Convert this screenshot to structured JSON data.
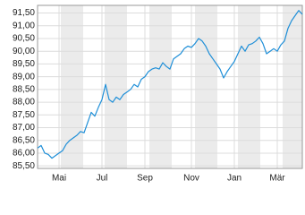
{
  "chart_data": {
    "type": "line",
    "color": "#1f8fd8",
    "grid": true,
    "categories": [
      null,
      null,
      null,
      null,
      null,
      null,
      "Mai",
      null,
      null,
      null,
      null,
      null,
      null,
      null,
      null,
      null,
      null,
      null,
      "Jul",
      null,
      null,
      null,
      null,
      null,
      null,
      null,
      null,
      null,
      null,
      null,
      "Sep",
      null,
      null,
      null,
      null,
      null,
      null,
      null,
      null,
      null,
      null,
      null,
      null,
      "Nov",
      null,
      null,
      null,
      null,
      null,
      null,
      null,
      null,
      null,
      null,
      null,
      "Jan",
      null,
      null,
      null,
      null,
      null,
      null,
      null,
      null,
      null,
      null,
      null,
      "Mär",
      null,
      null,
      null,
      null,
      null,
      null,
      null
    ],
    "values": [
      86.2,
      86.3,
      86.0,
      85.95,
      85.8,
      85.9,
      86.0,
      86.1,
      86.35,
      86.5,
      86.6,
      86.7,
      86.85,
      86.8,
      87.2,
      87.6,
      87.45,
      87.8,
      88.1,
      88.7,
      88.1,
      88.0,
      88.2,
      88.1,
      88.3,
      88.4,
      88.5,
      88.7,
      88.6,
      88.9,
      89.0,
      89.2,
      89.3,
      89.35,
      89.3,
      89.55,
      89.4,
      89.3,
      89.7,
      89.8,
      89.9,
      90.1,
      90.2,
      90.15,
      90.3,
      90.5,
      90.4,
      90.2,
      89.9,
      89.7,
      89.5,
      89.3,
      88.95,
      89.2,
      89.4,
      89.6,
      89.9,
      90.2,
      90.0,
      90.25,
      90.3,
      90.4,
      90.55,
      90.3,
      89.9,
      90.0,
      90.1,
      90.0,
      90.25,
      90.4,
      90.9,
      91.2,
      91.4,
      91.6,
      91.45
    ],
    "ylim": [
      85.4,
      91.8
    ],
    "yticks": [
      {
        "value": 85.5,
        "label": "85,50"
      },
      {
        "value": 86,
        "label": "86,00"
      },
      {
        "value": 86.5,
        "label": "86,50"
      },
      {
        "value": 87,
        "label": "87,00"
      },
      {
        "value": 87.5,
        "label": "87,50"
      },
      {
        "value": 88,
        "label": "88,00"
      },
      {
        "value": 88.5,
        "label": "88,50"
      },
      {
        "value": 89,
        "label": "89,00"
      },
      {
        "value": 89.5,
        "label": "89,50"
      },
      {
        "value": 90,
        "label": "90,00"
      },
      {
        "value": 90.5,
        "label": "90,50"
      },
      {
        "value": 91,
        "label": "91,00"
      },
      {
        "value": 91.5,
        "label": "91,50"
      }
    ]
  }
}
